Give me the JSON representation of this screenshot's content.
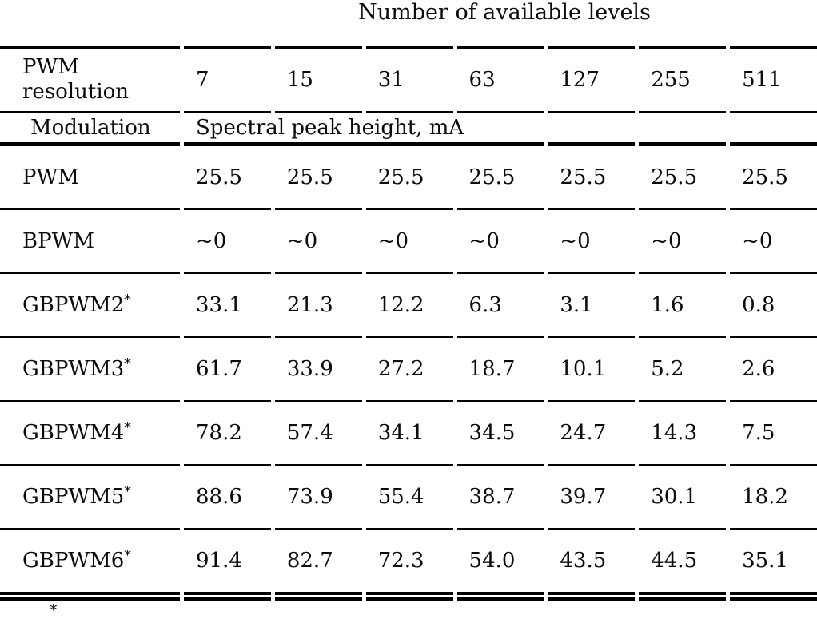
{
  "title": "Number of available levels",
  "table": {
    "corner_header": "PWM resolution",
    "level_headers": [
      "7",
      "15",
      "31",
      "63",
      "127",
      "255",
      "511"
    ],
    "modulation_header": "Modulation",
    "spectral_header": "Spectral peak height, mA",
    "rows": [
      {
        "label": "PWM",
        "sup": "",
        "values": [
          "25.5",
          "25.5",
          "25.5",
          "25.5",
          "25.5",
          "25.5",
          "25.5"
        ]
      },
      {
        "label": "BPWM",
        "sup": "",
        "values": [
          "~0",
          "~0",
          "~0",
          "~0",
          "~0",
          "~0",
          "~0"
        ]
      },
      {
        "label": "GBPWM2",
        "sup": "*",
        "values": [
          "33.1",
          "21.3",
          "12.2",
          "6.3",
          "3.1",
          "1.6",
          "0.8"
        ]
      },
      {
        "label": "GBPWM3",
        "sup": "*",
        "values": [
          "61.7",
          "33.9",
          "27.2",
          "18.7",
          "10.1",
          "5.2",
          "2.6"
        ]
      },
      {
        "label": "GBPWM4",
        "sup": "*",
        "values": [
          "78.2",
          "57.4",
          "34.1",
          "34.5",
          "24.7",
          "14.3",
          "7.5"
        ]
      },
      {
        "label": "GBPWM5",
        "sup": "*",
        "values": [
          "88.6",
          "73.9",
          "55.4",
          "38.7",
          "39.7",
          "30.1",
          "18.2"
        ]
      },
      {
        "label": "GBPWM6",
        "sup": "*",
        "values": [
          "91.4",
          "82.7",
          "72.3",
          "54.0",
          "43.5",
          "44.5",
          "35.1"
        ]
      }
    ]
  },
  "footnote_marker": "*",
  "colors": {
    "text": "#0b0b0b",
    "rule": "#000000",
    "background": "#ffffff"
  }
}
